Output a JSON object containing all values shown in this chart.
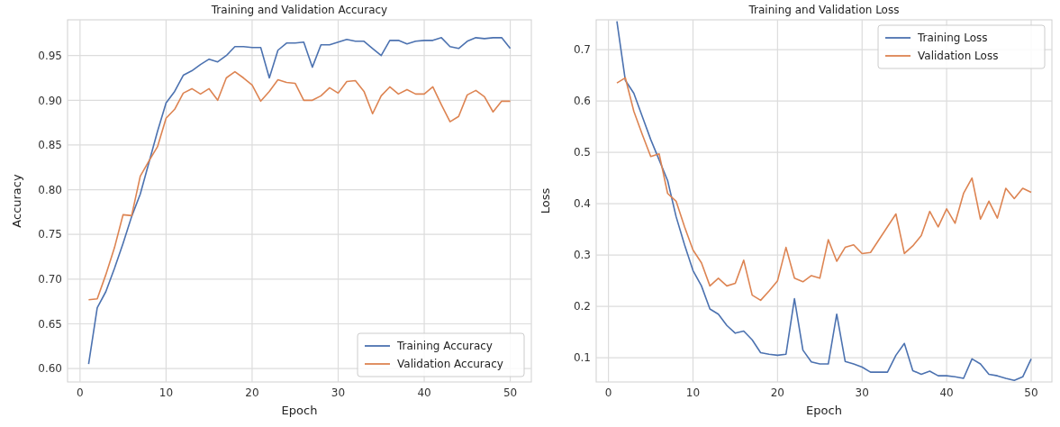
{
  "chart_data": [
    {
      "type": "line",
      "title": "Training and Validation Accuracy",
      "xlabel": "Epoch",
      "ylabel": "Accuracy",
      "x": [
        1,
        2,
        3,
        4,
        5,
        6,
        7,
        8,
        9,
        10,
        11,
        12,
        13,
        14,
        15,
        16,
        17,
        18,
        19,
        20,
        21,
        22,
        23,
        24,
        25,
        26,
        27,
        28,
        29,
        30,
        31,
        32,
        33,
        34,
        35,
        36,
        37,
        38,
        39,
        40,
        41,
        42,
        43,
        44,
        45,
        46,
        47,
        48,
        49,
        50
      ],
      "xlim": [
        -1.45,
        52.45
      ],
      "xticks": [
        0,
        10,
        20,
        30,
        40,
        50
      ],
      "ylim": [
        0.585,
        0.99
      ],
      "yticks": [
        {
          "value": 0.6,
          "label": "0.60"
        },
        {
          "value": 0.65,
          "label": "0.65"
        },
        {
          "value": 0.7,
          "label": "0.70"
        },
        {
          "value": 0.75,
          "label": "0.75"
        },
        {
          "value": 0.8,
          "label": "0.80"
        },
        {
          "value": 0.85,
          "label": "0.85"
        },
        {
          "value": 0.9,
          "label": "0.90"
        },
        {
          "value": 0.95,
          "label": "0.95"
        }
      ],
      "grid": true,
      "legend": "bottom right",
      "series": [
        {
          "name": "Training Accuracy",
          "color": "#4c72b0",
          "values": [
            0.605,
            0.668,
            0.686,
            0.712,
            0.74,
            0.77,
            0.795,
            0.83,
            0.865,
            0.897,
            0.91,
            0.928,
            0.933,
            0.94,
            0.946,
            0.943,
            0.95,
            0.96,
            0.96,
            0.959,
            0.959,
            0.925,
            0.956,
            0.964,
            0.964,
            0.965,
            0.937,
            0.962,
            0.962,
            0.965,
            0.968,
            0.966,
            0.966,
            0.958,
            0.95,
            0.967,
            0.967,
            0.963,
            0.966,
            0.967,
            0.967,
            0.97,
            0.96,
            0.958,
            0.966,
            0.97,
            0.969,
            0.97,
            0.97,
            0.958
          ]
        },
        {
          "name": "Validation Accuracy",
          "color": "#dd8452",
          "values": [
            0.677,
            0.678,
            0.705,
            0.735,
            0.772,
            0.771,
            0.815,
            0.832,
            0.848,
            0.88,
            0.89,
            0.908,
            0.913,
            0.907,
            0.913,
            0.9,
            0.925,
            0.932,
            0.925,
            0.917,
            0.899,
            0.91,
            0.923,
            0.92,
            0.919,
            0.9,
            0.9,
            0.905,
            0.914,
            0.908,
            0.921,
            0.922,
            0.91,
            0.885,
            0.905,
            0.915,
            0.907,
            0.912,
            0.907,
            0.907,
            0.915,
            0.895,
            0.876,
            0.882,
            0.906,
            0.911,
            0.904,
            0.887,
            0.899,
            0.899
          ]
        }
      ]
    },
    {
      "type": "line",
      "title": "Training and Validation Loss",
      "xlabel": "Epoch",
      "ylabel": "Loss",
      "x": [
        1,
        2,
        3,
        4,
        5,
        6,
        7,
        8,
        9,
        10,
        11,
        12,
        13,
        14,
        15,
        16,
        17,
        18,
        19,
        20,
        21,
        22,
        23,
        24,
        25,
        26,
        27,
        28,
        29,
        30,
        31,
        32,
        33,
        34,
        35,
        36,
        37,
        38,
        39,
        40,
        41,
        42,
        43,
        44,
        45,
        46,
        47,
        48,
        49,
        50
      ],
      "xlim": [
        -1.45,
        52.45
      ],
      "xticks": [
        0,
        10,
        20,
        30,
        40,
        50
      ],
      "ylim": [
        0.053,
        0.758
      ],
      "yticks": [
        0.1,
        0.2,
        0.3,
        0.4,
        0.5,
        0.6,
        0.7
      ],
      "grid": true,
      "legend": "top right",
      "series": [
        {
          "name": "Training Loss",
          "color": "#4c72b0",
          "values": [
            0.755,
            0.64,
            0.615,
            0.57,
            0.525,
            0.485,
            0.445,
            0.375,
            0.32,
            0.27,
            0.24,
            0.195,
            0.185,
            0.163,
            0.148,
            0.152,
            0.135,
            0.11,
            0.107,
            0.105,
            0.107,
            0.215,
            0.115,
            0.092,
            0.088,
            0.088,
            0.185,
            0.093,
            0.088,
            0.082,
            0.072,
            0.072,
            0.072,
            0.105,
            0.128,
            0.075,
            0.068,
            0.074,
            0.065,
            0.065,
            0.063,
            0.06,
            0.098,
            0.088,
            0.068,
            0.065,
            0.06,
            0.056,
            0.063,
            0.098
          ]
        },
        {
          "name": "Validation Loss",
          "color": "#dd8452",
          "values": [
            0.635,
            0.645,
            0.58,
            0.535,
            0.492,
            0.497,
            0.42,
            0.405,
            0.355,
            0.31,
            0.285,
            0.24,
            0.255,
            0.24,
            0.245,
            0.29,
            0.222,
            0.212,
            0.23,
            0.25,
            0.315,
            0.255,
            0.248,
            0.26,
            0.255,
            0.33,
            0.288,
            0.315,
            0.32,
            0.303,
            0.305,
            0.33,
            0.355,
            0.38,
            0.303,
            0.318,
            0.338,
            0.385,
            0.355,
            0.39,
            0.362,
            0.42,
            0.45,
            0.37,
            0.405,
            0.372,
            0.43,
            0.41,
            0.43,
            0.422
          ]
        }
      ]
    }
  ]
}
